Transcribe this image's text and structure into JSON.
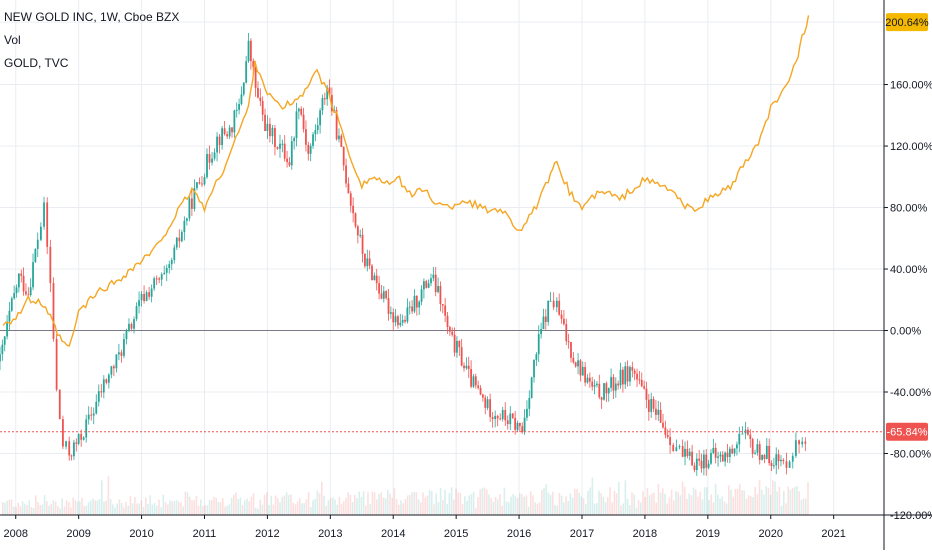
{
  "legend": {
    "title": "NEW GOLD INC, 1W, Cboe BZX",
    "volume_label": "Vol",
    "compare_label": "GOLD, TVC"
  },
  "colors": {
    "up": "#26a69a",
    "down": "#ef5350",
    "gold_line": "#f5a623",
    "gold_badge": "#f5b800",
    "last_badge": "#ef5350",
    "grid": "#e9edf2",
    "zero_line": "#787b86"
  },
  "chart_data": {
    "type": "line",
    "title": "NEW GOLD INC, 1W, Cboe BZX",
    "xlabel": "",
    "ylabel": "",
    "x_ticks": [
      "2008",
      "2009",
      "2010",
      "2011",
      "2012",
      "2013",
      "2014",
      "2015",
      "2016",
      "2017",
      "2018",
      "2019",
      "2020",
      "2021"
    ],
    "y_ticks": [
      "200.64%",
      "160.00%",
      "120.00%",
      "80.00%",
      "40.00%",
      "0.00%",
      "-40.00%",
      "-65.84%",
      "-80.00%",
      "-120.00%"
    ],
    "ylim": [
      -120,
      215
    ],
    "xlim": [
      2007.75,
      2021.8
    ],
    "grid": true,
    "last_values": {
      "gold": "200.64%",
      "new_gold": "-65.84%"
    },
    "series": [
      {
        "name": "GOLD, TVC",
        "style": "line",
        "x": [
          2007.8,
          2008.0,
          2008.2,
          2008.4,
          2008.55,
          2008.7,
          2008.85,
          2009.0,
          2009.3,
          2009.6,
          2009.9,
          2010.2,
          2010.5,
          2010.8,
          2011.0,
          2011.3,
          2011.5,
          2011.7,
          2011.8,
          2012.0,
          2012.2,
          2012.4,
          2012.6,
          2012.75,
          2012.9,
          2013.1,
          2013.3,
          2013.5,
          2013.7,
          2013.9,
          2014.1,
          2014.3,
          2014.5,
          2014.7,
          2014.9,
          2015.1,
          2015.3,
          2015.5,
          2015.7,
          2015.9,
          2016.0,
          2016.2,
          2016.5,
          2016.6,
          2016.8,
          2017.0,
          2017.2,
          2017.4,
          2017.6,
          2017.8,
          2018.0,
          2018.2,
          2018.4,
          2018.6,
          2018.75,
          2019.0,
          2019.2,
          2019.4,
          2019.6,
          2019.8,
          2020.0,
          2020.1,
          2020.25,
          2020.4,
          2020.5,
          2020.6
        ],
        "y": [
          5,
          8,
          20,
          18,
          8,
          -5,
          -12,
          12,
          25,
          32,
          42,
          52,
          72,
          92,
          80,
          105,
          125,
          145,
          175,
          155,
          145,
          148,
          155,
          170,
          160,
          140,
          115,
          95,
          100,
          95,
          98,
          88,
          92,
          82,
          80,
          85,
          82,
          78,
          80,
          70,
          65,
          75,
          100,
          110,
          90,
          80,
          88,
          90,
          85,
          92,
          98,
          95,
          92,
          82,
          78,
          85,
          90,
          95,
          110,
          120,
          145,
          148,
          160,
          175,
          190,
          205
        ]
      },
      {
        "name": "NEW GOLD INC",
        "style": "candle",
        "x": [
          2007.75,
          2007.9,
          2008.05,
          2008.2,
          2008.35,
          2008.45,
          2008.55,
          2008.65,
          2008.75,
          2008.85,
          2009.0,
          2009.2,
          2009.4,
          2009.6,
          2009.8,
          2010.0,
          2010.2,
          2010.4,
          2010.6,
          2010.8,
          2011.0,
          2011.2,
          2011.4,
          2011.55,
          2011.7,
          2011.85,
          2012.0,
          2012.2,
          2012.35,
          2012.5,
          2012.65,
          2012.8,
          2012.95,
          2013.1,
          2013.25,
          2013.4,
          2013.55,
          2013.7,
          2013.85,
          2014.0,
          2014.15,
          2014.3,
          2014.45,
          2014.6,
          2014.75,
          2014.9,
          2015.05,
          2015.2,
          2015.35,
          2015.5,
          2015.7,
          2015.9,
          2016.05,
          2016.2,
          2016.35,
          2016.5,
          2016.6,
          2016.75,
          2016.9,
          2017.05,
          2017.2,
          2017.35,
          2017.5,
          2017.65,
          2017.8,
          2017.95,
          2018.1,
          2018.25,
          2018.4,
          2018.5,
          2018.6,
          2018.75,
          2018.9,
          2019.05,
          2019.2,
          2019.35,
          2019.5,
          2019.6,
          2019.75,
          2019.9,
          2020.05,
          2020.2,
          2020.3,
          2020.4,
          2020.5,
          2020.6
        ],
        "y": [
          -20,
          10,
          35,
          25,
          60,
          78,
          30,
          -40,
          -75,
          -80,
          -72,
          -55,
          -35,
          -20,
          0,
          20,
          30,
          35,
          60,
          85,
          105,
          125,
          130,
          145,
          185,
          150,
          130,
          120,
          110,
          150,
          115,
          135,
          160,
          130,
          100,
          70,
          45,
          35,
          20,
          10,
          5,
          15,
          25,
          35,
          20,
          -5,
          -15,
          -30,
          -40,
          -50,
          -55,
          -60,
          -65,
          -30,
          0,
          20,
          15,
          -5,
          -20,
          -30,
          -40,
          -40,
          -35,
          -30,
          -25,
          -40,
          -50,
          -60,
          -70,
          -75,
          -82,
          -85,
          -85,
          -82,
          -83,
          -80,
          -68,
          -70,
          -78,
          -80,
          -83,
          -88,
          -80,
          -75,
          -70,
          -65.84
        ]
      }
    ]
  }
}
